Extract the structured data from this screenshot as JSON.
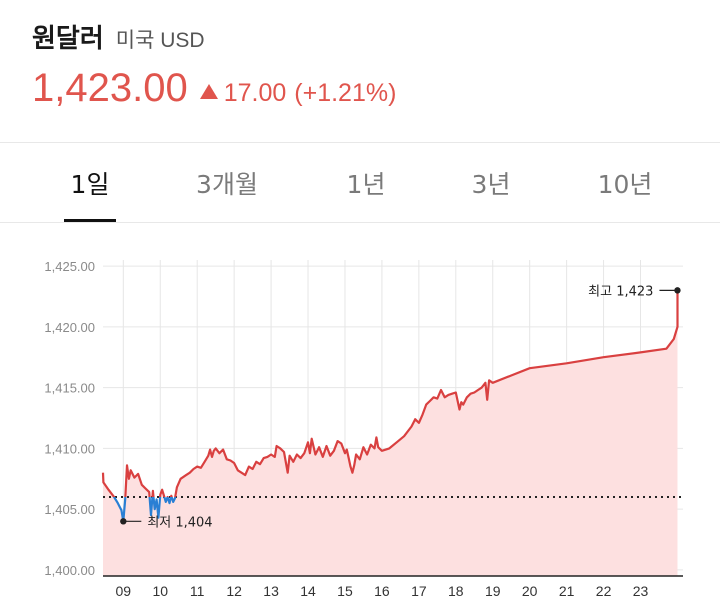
{
  "header": {
    "title": "원달러",
    "subtitle": "미국 USD",
    "price": "1,423.00",
    "change": "17.00",
    "change_pct": "(+1.21%)",
    "accent_color": "#e0554d"
  },
  "tabs": [
    {
      "label": "1일",
      "active": true
    },
    {
      "label": "3개월",
      "active": false
    },
    {
      "label": "1년",
      "active": false
    },
    {
      "label": "3년",
      "active": false
    },
    {
      "label": "10년",
      "active": false
    }
  ],
  "chart_data": {
    "type": "line",
    "xlabel": "",
    "ylabel": "",
    "ylim": [
      1399.5,
      1425.5
    ],
    "xlim": [
      8.45,
      24.15
    ],
    "y_ticks": [
      1400,
      1405,
      1410,
      1415,
      1420,
      1425
    ],
    "y_tick_labels": [
      "1,400.00",
      "1,405.00",
      "1,410.00",
      "1,415.00",
      "1,420.00",
      "1,425.00"
    ],
    "x_ticks": [
      9,
      10,
      11,
      12,
      13,
      14,
      15,
      16,
      17,
      18,
      19,
      20,
      21,
      22,
      23
    ],
    "x_tick_labels": [
      "09",
      "10",
      "11",
      "12",
      "13",
      "14",
      "15",
      "16",
      "17",
      "18",
      "19",
      "20",
      "21",
      "22",
      "23"
    ],
    "grid": true,
    "baseline": 1406,
    "colors": {
      "above": "#d94040",
      "below": "#2a7fd4",
      "fill": "#fde0e0",
      "baseline": "#222222"
    },
    "min_label": "최저 1,404",
    "max_label": "최고 1,423",
    "min_point": {
      "x": 9.0,
      "y": 1404.0
    },
    "max_point": {
      "x": 24.0,
      "y": 1423.0
    },
    "series": [
      {
        "values": [
          [
            8.45,
            1408
          ],
          [
            8.46,
            1407.2
          ],
          [
            8.6,
            1406.6
          ],
          [
            8.75,
            1406.0
          ],
          [
            8.85,
            1405.5
          ],
          [
            8.95,
            1404.9
          ],
          [
            9.0,
            1404.0
          ],
          [
            9.05,
            1405.8
          ],
          [
            9.1,
            1408.6
          ],
          [
            9.15,
            1407.5
          ],
          [
            9.2,
            1408.2
          ],
          [
            9.3,
            1407.6
          ],
          [
            9.4,
            1407.9
          ],
          [
            9.5,
            1407.0
          ],
          [
            9.6,
            1406.7
          ],
          [
            9.7,
            1406.4
          ],
          [
            9.75,
            1404.5
          ],
          [
            9.8,
            1406.5
          ],
          [
            9.85,
            1405.0
          ],
          [
            9.9,
            1405.8
          ],
          [
            9.95,
            1404.3
          ],
          [
            10.0,
            1406.2
          ],
          [
            10.05,
            1406.6
          ],
          [
            10.1,
            1406.1
          ],
          [
            10.15,
            1405.6
          ],
          [
            10.2,
            1406.0
          ],
          [
            10.25,
            1405.5
          ],
          [
            10.3,
            1406.1
          ],
          [
            10.35,
            1405.6
          ],
          [
            10.4,
            1405.9
          ],
          [
            10.45,
            1406.8
          ],
          [
            10.55,
            1407.5
          ],
          [
            10.7,
            1407.8
          ],
          [
            10.8,
            1408.0
          ],
          [
            10.9,
            1408.3
          ],
          [
            11.0,
            1408.5
          ],
          [
            11.1,
            1408.4
          ],
          [
            11.2,
            1408.9
          ],
          [
            11.3,
            1409.4
          ],
          [
            11.35,
            1409.9
          ],
          [
            11.4,
            1409.3
          ],
          [
            11.45,
            1409.8
          ],
          [
            11.5,
            1410.0
          ],
          [
            11.6,
            1409.6
          ],
          [
            11.7,
            1409.9
          ],
          [
            11.8,
            1409.1
          ],
          [
            11.9,
            1409.0
          ],
          [
            12.0,
            1408.8
          ],
          [
            12.1,
            1408.2
          ],
          [
            12.2,
            1408.0
          ],
          [
            12.3,
            1407.8
          ],
          [
            12.4,
            1408.5
          ],
          [
            12.5,
            1408.3
          ],
          [
            12.6,
            1408.9
          ],
          [
            12.7,
            1408.7
          ],
          [
            12.8,
            1409.2
          ],
          [
            12.9,
            1409.3
          ],
          [
            13.0,
            1409.5
          ],
          [
            13.1,
            1409.3
          ],
          [
            13.15,
            1410.2
          ],
          [
            13.25,
            1410.0
          ],
          [
            13.35,
            1409.7
          ],
          [
            13.45,
            1408.0
          ],
          [
            13.5,
            1409.4
          ],
          [
            13.6,
            1408.9
          ],
          [
            13.7,
            1409.5
          ],
          [
            13.8,
            1409.2
          ],
          [
            13.9,
            1409.6
          ],
          [
            14.0,
            1410.5
          ],
          [
            14.05,
            1409.6
          ],
          [
            14.1,
            1410.8
          ],
          [
            14.2,
            1409.5
          ],
          [
            14.3,
            1410.1
          ],
          [
            14.4,
            1409.3
          ],
          [
            14.5,
            1410.2
          ],
          [
            14.6,
            1409.4
          ],
          [
            14.7,
            1409.8
          ],
          [
            14.8,
            1410.6
          ],
          [
            14.9,
            1410.4
          ],
          [
            15.0,
            1409.6
          ],
          [
            15.05,
            1409.9
          ],
          [
            15.1,
            1409.2
          ],
          [
            15.15,
            1408.5
          ],
          [
            15.2,
            1408.0
          ],
          [
            15.25,
            1408.6
          ],
          [
            15.3,
            1409.5
          ],
          [
            15.4,
            1409.1
          ],
          [
            15.5,
            1410.1
          ],
          [
            15.6,
            1409.5
          ],
          [
            15.7,
            1410.3
          ],
          [
            15.8,
            1410.0
          ],
          [
            15.85,
            1410.9
          ],
          [
            15.9,
            1410.1
          ],
          [
            16.0,
            1409.8
          ],
          [
            16.2,
            1410.0
          ],
          [
            16.4,
            1410.5
          ],
          [
            16.6,
            1411.0
          ],
          [
            16.8,
            1411.8
          ],
          [
            16.9,
            1412.4
          ],
          [
            17.0,
            1412.1
          ],
          [
            17.1,
            1412.8
          ],
          [
            17.2,
            1413.6
          ],
          [
            17.3,
            1413.9
          ],
          [
            17.4,
            1414.2
          ],
          [
            17.5,
            1414.1
          ],
          [
            17.6,
            1414.8
          ],
          [
            17.7,
            1414.2
          ],
          [
            17.8,
            1414.4
          ],
          [
            17.9,
            1414.5
          ],
          [
            18.0,
            1414.6
          ],
          [
            18.1,
            1413.2
          ],
          [
            18.15,
            1413.8
          ],
          [
            18.2,
            1413.6
          ],
          [
            18.3,
            1414.2
          ],
          [
            18.4,
            1414.5
          ],
          [
            18.5,
            1414.6
          ],
          [
            18.6,
            1414.8
          ],
          [
            18.7,
            1415.0
          ],
          [
            18.8,
            1415.4
          ],
          [
            18.85,
            1414.0
          ],
          [
            18.9,
            1415.6
          ],
          [
            19.0,
            1415.4
          ],
          [
            19.5,
            1416.0
          ],
          [
            20.0,
            1416.6
          ],
          [
            21.0,
            1417.0
          ],
          [
            22.0,
            1417.5
          ],
          [
            23.0,
            1417.9
          ],
          [
            23.7,
            1418.2
          ],
          [
            23.9,
            1419.0
          ],
          [
            24.0,
            1420.0
          ],
          [
            24.0,
            1423.0
          ]
        ]
      }
    ]
  }
}
